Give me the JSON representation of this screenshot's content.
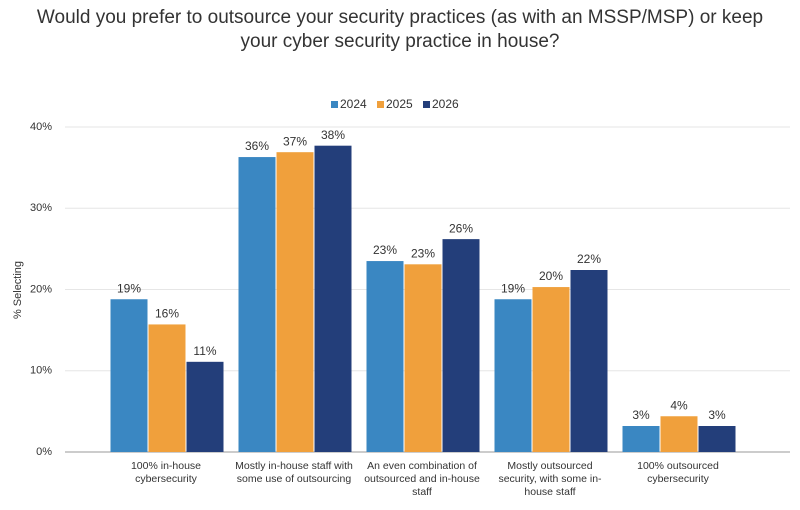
{
  "chart_data": {
    "type": "bar",
    "title": "Would you prefer to outsource your security practices (as with an MSSP/MSP) or keep your cyber security practice in house?",
    "y_label": "% Selecting",
    "categories": [
      "100% in-house cybersecurity",
      "Mostly in-house staff with some use of outsourcing",
      "An even combination of outsourced and in-house staff",
      "Mostly outsourced security, with some in-house staff",
      "100% outsourced cybersecurity"
    ],
    "series": [
      {
        "name": "2024",
        "color": "#3a87c2",
        "values": [
          18.8,
          36.3,
          23.5,
          18.8,
          3.2
        ],
        "value_labels": [
          "19%",
          "36%",
          "23%",
          "19%",
          "3%"
        ]
      },
      {
        "name": "2025",
        "color": "#f0a03c",
        "values": [
          15.7,
          36.9,
          23.1,
          20.3,
          4.4
        ],
        "value_labels": [
          "16%",
          "37%",
          "23%",
          "20%",
          "4%"
        ]
      },
      {
        "name": "2026",
        "color": "#233e7a",
        "values": [
          11.1,
          37.7,
          26.2,
          22.4,
          3.2
        ],
        "value_labels": [
          "11%",
          "38%",
          "26%",
          "22%",
          "3%"
        ]
      }
    ],
    "ylim": [
      0,
      40
    ],
    "yticks": [
      {
        "value": 0,
        "label": "0%"
      },
      {
        "value": 10,
        "label": "10%"
      },
      {
        "value": 20,
        "label": "20%"
      },
      {
        "value": 30,
        "label": "30%"
      },
      {
        "value": 40,
        "label": "40%"
      }
    ],
    "grid": true,
    "legend": "top"
  }
}
